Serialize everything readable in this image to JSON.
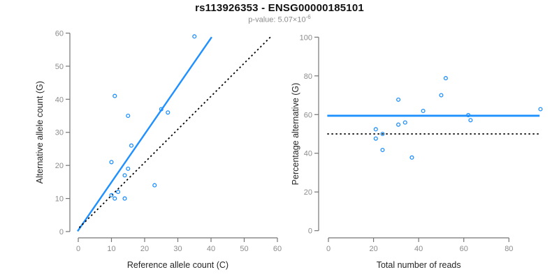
{
  "header": {
    "title": "rs113926353 - ENSG00000185101",
    "subtitle_prefix": "p-value: 5.07×10",
    "subtitle_exponent": "-6"
  },
  "colors": {
    "accent_blue": "#1E90FF",
    "axis_line_gray": "#757575",
    "tick_label_gray": "#8c8c8c",
    "axis_title_dark": "#262626",
    "identity_black": "#000000",
    "background": "#ffffff"
  },
  "chart_data": [
    {
      "type": "scatter",
      "name": "allele-counts-plot",
      "xlabel": "Reference allele count (C)",
      "ylabel": "Alternative allele count (G)",
      "xlim": [
        0,
        60
      ],
      "ylim": [
        0,
        60
      ],
      "xticks": [
        0,
        10,
        20,
        30,
        40,
        50,
        60
      ],
      "yticks": [
        0,
        10,
        20,
        30,
        40,
        50,
        60
      ],
      "grid": false,
      "legend": null,
      "points": [
        [
          35,
          59
        ],
        [
          11,
          41
        ],
        [
          25,
          37
        ],
        [
          27,
          36
        ],
        [
          15,
          35
        ],
        [
          16,
          26
        ],
        [
          10,
          21
        ],
        [
          15,
          19
        ],
        [
          14,
          17
        ],
        [
          23,
          14
        ],
        [
          12,
          12
        ],
        [
          10,
          11
        ],
        [
          11,
          10
        ],
        [
          14,
          10
        ]
      ],
      "lines": [
        {
          "name": "fit-line",
          "x1": -0.2,
          "y1": 0.1,
          "x2": 40.2,
          "y2": 58.8,
          "color": "#1E90FF",
          "width": 2.4,
          "dash": ""
        },
        {
          "name": "identity-line",
          "x1": 0.3,
          "y1": 1.2,
          "x2": 57.9,
          "y2": 58.8,
          "color": "#000000",
          "width": 1.8,
          "dash": "2.4 3.6"
        }
      ]
    },
    {
      "type": "scatter",
      "name": "percentage-alternative-plot",
      "xlabel": "Total number of reads",
      "ylabel": "Percentage alternative (G)",
      "xlim": [
        0,
        95
      ],
      "ylim": [
        0,
        100
      ],
      "xticks": [
        0,
        20,
        40,
        60,
        80
      ],
      "yticks": [
        0,
        20,
        40,
        60,
        80,
        100
      ],
      "grid": false,
      "legend": null,
      "points": [
        [
          94,
          62.8
        ],
        [
          52,
          78.8
        ],
        [
          62,
          59.7
        ],
        [
          63,
          57.1
        ],
        [
          50,
          70
        ],
        [
          42,
          61.9
        ],
        [
          31,
          67.7
        ],
        [
          34,
          55.9
        ],
        [
          31,
          54.8
        ],
        [
          37,
          37.8
        ],
        [
          24,
          50
        ],
        [
          21,
          52.4
        ],
        [
          21,
          47.6
        ],
        [
          24,
          41.7
        ]
      ],
      "lines": [
        {
          "name": "mean-line",
          "x1": -0.5,
          "y1": 59.4,
          "x2": 93.6,
          "y2": 59.4,
          "color": "#1E90FF",
          "width": 2.8,
          "dash": ""
        },
        {
          "name": "null-line",
          "x1": -0.5,
          "y1": 50,
          "x2": 93.6,
          "y2": 50,
          "color": "#000000",
          "width": 1.8,
          "dash": "2.4 3.6"
        }
      ]
    }
  ]
}
